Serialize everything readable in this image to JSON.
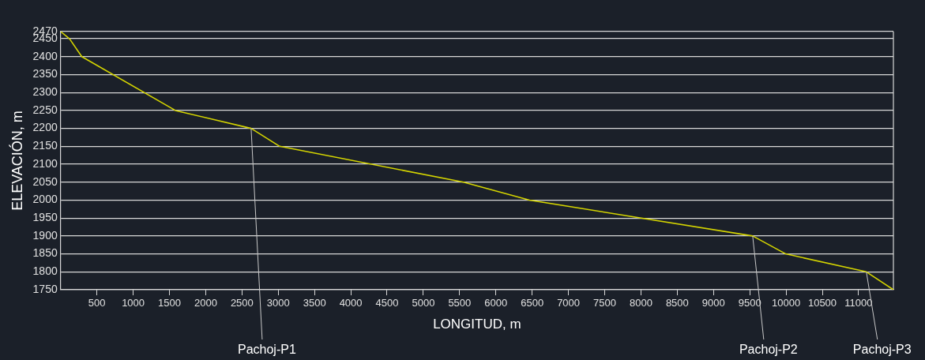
{
  "chart_data": {
    "type": "line",
    "xlabel": "LONGITUD, m",
    "ylabel": "ELEVACIÓN, m",
    "x": [
      0,
      123,
      292,
      1582,
      2626,
      3019,
      5555,
      6464,
      9540,
      9996,
      11107,
      11480
    ],
    "series": [
      {
        "color": "#d4d400",
        "values": [
          2470,
          2450,
          2400,
          2250,
          2200,
          2150,
          2050,
          2000,
          1900,
          1850,
          1800,
          1750
        ]
      }
    ],
    "xlim": [
      0,
      11480
    ],
    "xticks": [
      500,
      1000,
      1500,
      2000,
      2500,
      3000,
      3500,
      4000,
      4500,
      5000,
      5500,
      6000,
      6500,
      7000,
      7500,
      8000,
      8500,
      9000,
      9500,
      10000,
      10500,
      11000
    ],
    "ylim": [
      1750,
      2470
    ],
    "yticks": [
      1750,
      1800,
      1850,
      1900,
      1950,
      2000,
      2050,
      2100,
      2150,
      2200,
      2250,
      2300,
      2350,
      2400,
      2450,
      2470
    ],
    "grid": "y",
    "legend": false,
    "marker": "none",
    "line_style": "solid",
    "annotations": [
      {
        "text": "Pachoj-P1",
        "x": 2626,
        "y": 2200
      },
      {
        "text": "Pachoj-P2",
        "x": 9540,
        "y": 1900
      },
      {
        "text": "Pachoj-P3",
        "x": 11107,
        "y": 1800
      }
    ]
  }
}
